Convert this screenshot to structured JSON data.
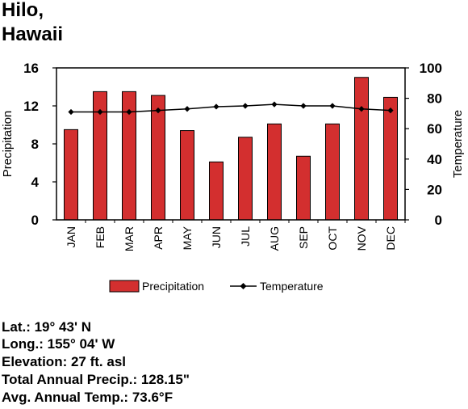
{
  "title": {
    "line1": "Hilo,",
    "line2": "Hawaii"
  },
  "colors": {
    "bar": "#d32f2f",
    "line": "#000000"
  },
  "chart_data": {
    "type": "bar",
    "categories": [
      "JAN",
      "FEB",
      "MAR",
      "APR",
      "MAY",
      "JUN",
      "JUL",
      "AUG",
      "SEP",
      "OCT",
      "NOV",
      "DEC"
    ],
    "series": [
      {
        "name": "Precipitation",
        "type": "bar",
        "axis": "left",
        "values": [
          9.5,
          13.5,
          13.5,
          13.1,
          9.4,
          6.1,
          8.7,
          10.1,
          6.7,
          10.1,
          15.0,
          12.9
        ]
      },
      {
        "name": "Temperature",
        "type": "line",
        "axis": "right",
        "values": [
          71,
          71,
          71,
          72,
          73,
          74.5,
          75,
          76,
          75,
          75,
          73,
          72
        ]
      }
    ],
    "ylabel_left": "Precipitation",
    "ylabel_right": "Temperature",
    "ylim_left": [
      0,
      16
    ],
    "ylim_right": [
      0,
      100
    ],
    "yticks_left": [
      "0",
      "4",
      "8",
      "12",
      "16"
    ],
    "yticks_right": [
      "0",
      "20",
      "40",
      "60",
      "80",
      "100"
    ],
    "legend": [
      "Precipitation",
      "Temperature"
    ],
    "legend_position": "bottom",
    "grid": false
  },
  "info": {
    "lat": "Lat.: 19° 43' N",
    "long": "Long.: 155° 04' W",
    "elevation": "Elevation: 27 ft. asl",
    "precip": "Total Annual Precip.: 128.15\"",
    "temp": "Avg. Annual Temp.: 73.6°F"
  }
}
